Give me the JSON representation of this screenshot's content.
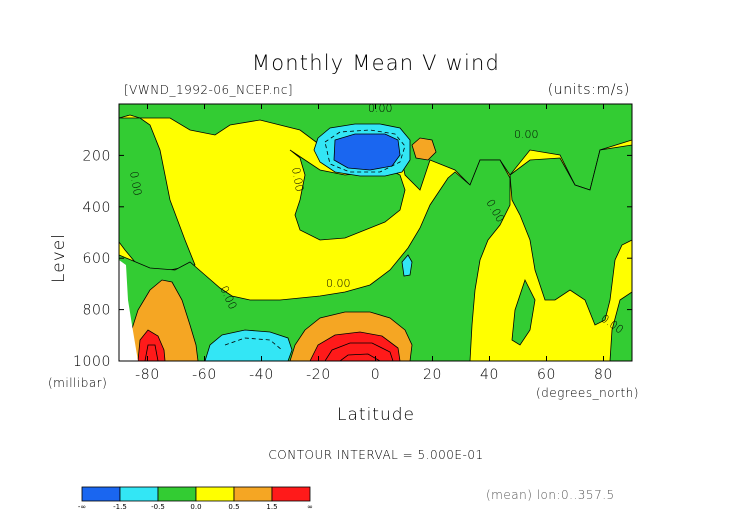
{
  "chart_data": {
    "type": "heatmap",
    "subtype": "filled-contour",
    "title": "Monthly Mean V wind",
    "subtitle_left": "[VWND_1992-06_NCEP.nc]",
    "units_label": "(units:m/s)",
    "xlabel": "Latitude",
    "x_units_label": "(degrees_north)",
    "ylabel": "Level",
    "y_units_label": "(millibar)",
    "xlim": [
      -90,
      90
    ],
    "ylim": [
      1000,
      0
    ],
    "y_reversed": true,
    "x_ticks": [
      -80,
      -60,
      -40,
      -20,
      0,
      20,
      40,
      60,
      80
    ],
    "y_ticks": [
      200,
      400,
      600,
      800,
      1000
    ],
    "contour_interval_text": "CONTOUR INTERVAL = 5.000E-01",
    "footer_note": "(mean) lon:0..357.5",
    "contour_labels": [
      {
        "text": "0.00",
        "lat": 0,
        "level": 15
      },
      {
        "text": "0.00",
        "lat": 55,
        "level": 100
      },
      {
        "text": "0.00",
        "lat": -85,
        "level": 320
      },
      {
        "text": "0.00",
        "lat": -30,
        "level": 300
      },
      {
        "text": "0.00",
        "lat": 40,
        "level": 420
      },
      {
        "text": "0.00",
        "lat": -13,
        "level": 670
      },
      {
        "text": "0.00",
        "lat": -55,
        "level": 790
      },
      {
        "text": "0.00",
        "lat": 85,
        "level": 880
      }
    ],
    "colorbar": {
      "levels": [
        "-∞",
        "-1.5",
        "-0.5",
        "0.0",
        "0.5",
        "1.5",
        "∞"
      ],
      "colors": [
        "#1a66f0",
        "#33e6f5",
        "#33cc33",
        "#ffff00",
        "#f5a623",
        "#ff1a1a"
      ]
    },
    "regions": [
      {
        "id": "jet-negative-core",
        "lat": [
          -15,
          5
        ],
        "level": [
          110,
          230
        ],
        "value_range": "< -1.5"
      },
      {
        "id": "jet-negative-ring",
        "lat": [
          -20,
          12
        ],
        "level": [
          90,
          260
        ],
        "value_range": "-1.5 to -0.5"
      },
      {
        "id": "south-high-neg",
        "lat": [
          -58,
          -40
        ],
        "level": [
          880,
          1000
        ],
        "value_range": "-1.5 to -0.5"
      },
      {
        "id": "mid-high-neg",
        "lat": [
          10,
          13
        ],
        "level": [
          590,
          660
        ],
        "value_range": "-1.5 to -0.5"
      },
      {
        "id": "surface-positive-core",
        "lat": [
          -18,
          8
        ],
        "level": [
          860,
          1000
        ],
        "value_range": "> 1.5"
      },
      {
        "id": "surface-positive-ring",
        "lat": [
          -27,
          17
        ],
        "level": [
          790,
          1000
        ],
        "value_range": "0.5 to 1.5"
      },
      {
        "id": "antarctic-positive",
        "lat": [
          -85,
          -70
        ],
        "level": [
          700,
          1000
        ],
        "value_range": "0.5 to > 1.5"
      },
      {
        "id": "upper-positive-blob",
        "lat": [
          17,
          22
        ],
        "level": [
          130,
          210
        ],
        "value_range": "0.5 to 1.5"
      }
    ]
  }
}
